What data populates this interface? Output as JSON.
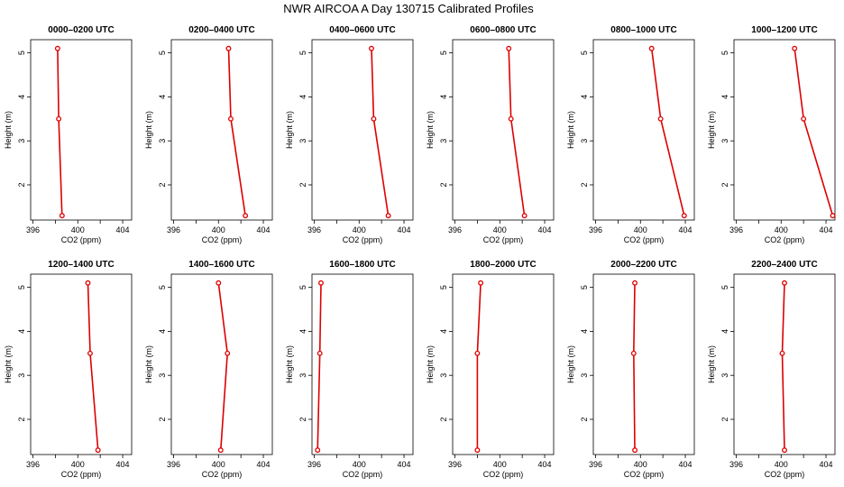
{
  "title": "NWR AIRCOA A  Day 130715  Calibrated Profiles",
  "chart_data": {
    "type": "line",
    "xlabel": "CO2 (ppm)",
    "ylabel": "Height (m)",
    "xlim": [
      395.8,
      404.8
    ],
    "ylim": [
      1.2,
      5.3
    ],
    "xticks": [
      396,
      398,
      400,
      402,
      404
    ],
    "xtick_labels": [
      "396",
      "",
      "400",
      "",
      "404"
    ],
    "yticks": [
      2,
      3,
      4,
      5
    ],
    "line_color": "#dd0000",
    "panels": [
      {
        "title": "0000–0200 UTC",
        "x": [
          398.6,
          398.3,
          398.2
        ],
        "y": [
          1.3,
          3.5,
          5.1
        ]
      },
      {
        "title": "0200–0400 UTC",
        "x": [
          402.4,
          401.1,
          400.9
        ],
        "y": [
          1.3,
          3.5,
          5.1
        ]
      },
      {
        "title": "0400–0600 UTC",
        "x": [
          402.6,
          401.3,
          401.1
        ],
        "y": [
          1.3,
          3.5,
          5.1
        ]
      },
      {
        "title": "0600–0800 UTC",
        "x": [
          402.2,
          401.0,
          400.8
        ],
        "y": [
          1.3,
          3.5,
          5.1
        ]
      },
      {
        "title": "0800–1000 UTC",
        "x": [
          403.9,
          401.8,
          401.0
        ],
        "y": [
          1.3,
          3.5,
          5.1
        ]
      },
      {
        "title": "1000–1200 UTC",
        "x": [
          404.6,
          402.0,
          401.2
        ],
        "y": [
          1.3,
          3.5,
          5.1
        ]
      },
      {
        "title": "1200–1400 UTC",
        "x": [
          401.8,
          401.1,
          400.9
        ],
        "y": [
          1.3,
          3.5,
          5.1
        ]
      },
      {
        "title": "1400–1600 UTC",
        "x": [
          400.2,
          400.8,
          400.0
        ],
        "y": [
          1.3,
          3.5,
          5.1
        ]
      },
      {
        "title": "1600–1800 UTC",
        "x": [
          396.3,
          396.5,
          396.6
        ],
        "y": [
          1.3,
          3.5,
          5.1
        ]
      },
      {
        "title": "1800–2000 UTC",
        "x": [
          398.0,
          398.0,
          398.3
        ],
        "y": [
          1.3,
          3.5,
          5.1
        ]
      },
      {
        "title": "2000–2200 UTC",
        "x": [
          399.5,
          399.4,
          399.5
        ],
        "y": [
          1.3,
          3.5,
          5.1
        ]
      },
      {
        "title": "2200–2400 UTC",
        "x": [
          400.3,
          400.1,
          400.3
        ],
        "y": [
          1.3,
          3.5,
          5.1
        ]
      }
    ]
  }
}
